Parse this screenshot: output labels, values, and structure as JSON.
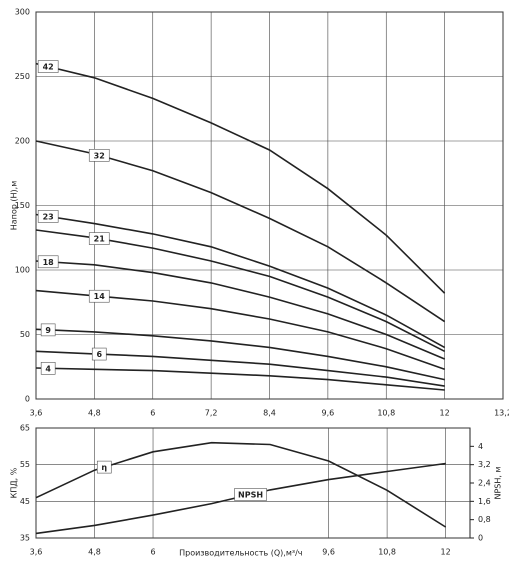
{
  "chart_data": [
    {
      "type": "line",
      "y_label": "Напор (H),м",
      "x": [
        3.6,
        4.8,
        6,
        7.2,
        8.4,
        9.6,
        10.8,
        12
      ],
      "xlim": [
        3.6,
        13.2
      ],
      "xticks": [
        {
          "value": 3.6,
          "label": "3,6"
        },
        {
          "value": 4.8,
          "label": "4,8"
        },
        6,
        {
          "value": 7.2,
          "label": "7,2"
        },
        {
          "value": 8.4,
          "label": "8,4"
        },
        {
          "value": 9.6,
          "label": "9,6"
        },
        {
          "value": 10.8,
          "label": "10,8"
        },
        12,
        {
          "value": 13.2,
          "label": "13,2"
        }
      ],
      "ylim": [
        0,
        300
      ],
      "yticks": [
        0,
        50,
        100,
        150,
        200,
        250,
        300
      ],
      "grid": true,
      "series": [
        {
          "name": "42",
          "color": "#222222",
          "values": [
            260,
            249,
            233,
            214,
            193,
            163,
            127,
            82
          ]
        },
        {
          "name": "32",
          "color": "#222222",
          "values": [
            200,
            190,
            177,
            160,
            140,
            118,
            90,
            60
          ]
        },
        {
          "name": "23",
          "color": "#222222",
          "values": [
            143,
            136,
            128,
            118,
            103,
            86,
            65,
            40
          ]
        },
        {
          "name": "21",
          "color": "#222222",
          "values": [
            131,
            125,
            117,
            107,
            95,
            79,
            60,
            37
          ]
        },
        {
          "name": "18",
          "color": "#222222",
          "values": [
            107,
            104,
            98,
            90,
            79,
            66,
            50,
            31
          ]
        },
        {
          "name": "14",
          "color": "#222222",
          "values": [
            84,
            80,
            76,
            70,
            62,
            52,
            39,
            23
          ]
        },
        {
          "name": "9",
          "color": "#222222",
          "values": [
            54,
            52,
            49,
            45,
            40,
            33,
            25,
            15
          ]
        },
        {
          "name": "6",
          "color": "#222222",
          "values": [
            37,
            35,
            33,
            30,
            27,
            22,
            17,
            10
          ]
        },
        {
          "name": "4",
          "color": "#222222",
          "values": [
            24,
            23,
            22,
            20,
            18,
            15,
            11,
            7
          ]
        }
      ]
    },
    {
      "type": "line",
      "y_label": "КПД, %",
      "x_label": "Производительность (Q),м³/ч",
      "y2_label": "NPSH, м",
      "x": [
        3.6,
        4.8,
        6,
        7.2,
        8.4,
        9.6,
        10.8,
        12
      ],
      "xlim": [
        3.6,
        12.5
      ],
      "xticks": [
        {
          "value": 3.6,
          "label": "3,6"
        },
        {
          "value": 4.8,
          "label": "4,8"
        },
        6,
        {
          "value": 9.6,
          "label": "9,6"
        },
        {
          "value": 10.8,
          "label": "10,8"
        },
        12
      ],
      "ylim": [
        35,
        65
      ],
      "yticks": [
        35,
        45,
        55,
        65
      ],
      "y2lim": [
        0,
        4.8
      ],
      "y2ticks": [
        0,
        {
          "value": 0.8,
          "label": "0,8"
        },
        {
          "value": 1.6,
          "label": "1,6"
        },
        {
          "value": 2.4,
          "label": "2,4"
        },
        {
          "value": 3.2,
          "label": "3,2"
        },
        4
      ],
      "grid": true,
      "series": [
        {
          "name": "η",
          "color": "#222222",
          "values": [
            46,
            53.5,
            58.5,
            61,
            60.5,
            56,
            48,
            38
          ]
        },
        {
          "name": "NPSH",
          "color": "#222222",
          "axis": "y2",
          "values": [
            0.2,
            0.55,
            1.0,
            1.5,
            2.1,
            2.55,
            2.9,
            3.25
          ]
        }
      ]
    }
  ]
}
